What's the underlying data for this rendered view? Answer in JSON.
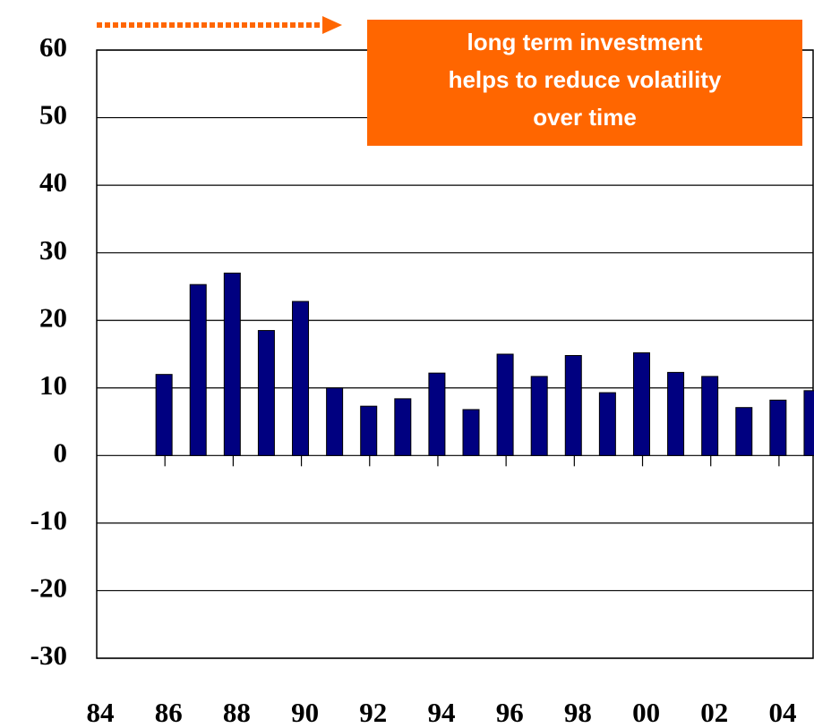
{
  "chart_data": {
    "type": "bar",
    "annotation": [
      "long term investment",
      "helps to reduce volatility",
      "over time"
    ],
    "categories": [
      "84",
      null,
      "86",
      null,
      "88",
      null,
      "90",
      null,
      "92",
      null,
      "94",
      null,
      "96",
      null,
      "98",
      null,
      "00",
      null,
      "02",
      null,
      "04"
    ],
    "values": [
      null,
      12,
      25.3,
      27,
      18.5,
      22.8,
      10,
      7.3,
      8.4,
      12.2,
      6.8,
      15,
      11.7,
      14.8,
      9.3,
      15.2,
      12.3,
      11.7,
      7.1,
      8.2,
      9.6
    ],
    "color": "#000080",
    "ylim": [
      -30,
      60
    ],
    "yticks": [
      -30,
      -20,
      -10,
      0,
      10,
      20,
      30,
      40,
      50,
      60
    ],
    "grid": true,
    "annotation_color": "#ff6600"
  }
}
